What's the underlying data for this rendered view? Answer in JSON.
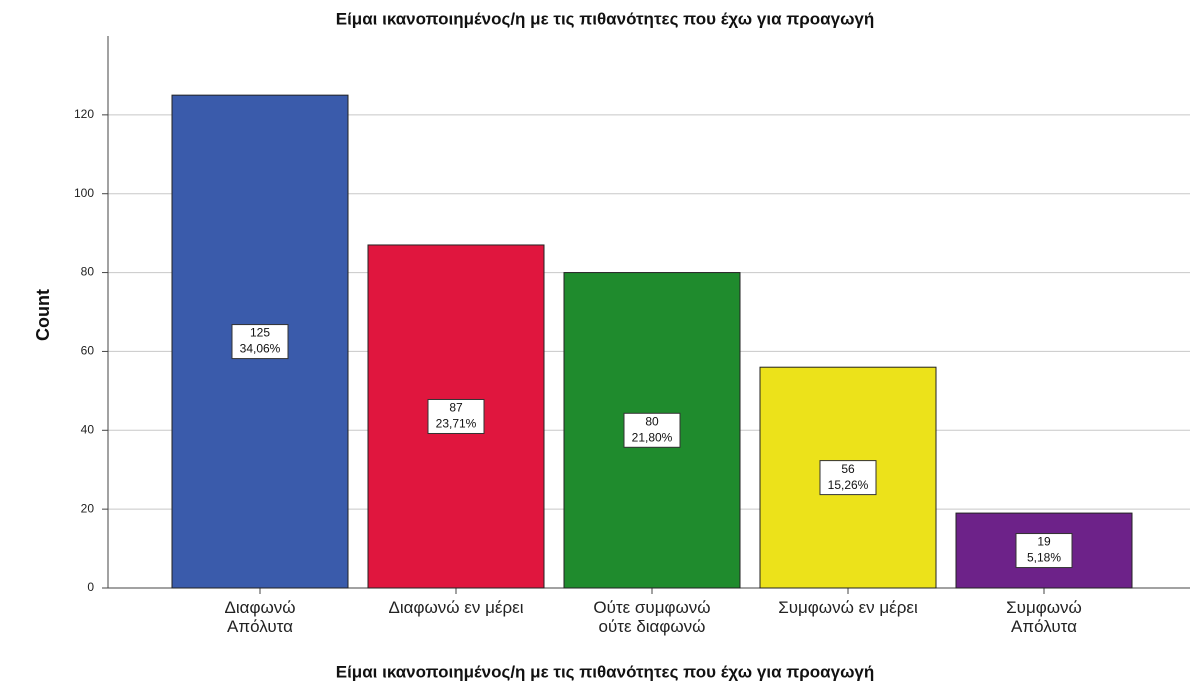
{
  "chart_data": {
    "type": "bar",
    "title": "Είμαι ικανοποιημένος/η με τις πιθανότητες που έχω για προαγωγή",
    "xlabel": "Είμαι ικανοποιημένος/η με τις πιθανότητες που έχω για προαγωγή",
    "ylabel": "Count",
    "categories": [
      "Διαφωνώ\nΑπόλυτα",
      "Διαφωνώ εν μέρει",
      "Ούτε συμφωνώ\nούτε διαφωνώ",
      "Συμφωνώ εν μέρει",
      "Συμφωνώ\nΑπόλυτα"
    ],
    "values": [
      125,
      87,
      80,
      56,
      19
    ],
    "percentages": [
      34.06,
      23.71,
      21.8,
      15.26,
      5.18
    ],
    "percentage_labels": [
      "34,06%",
      "23,71%",
      "21,80%",
      "15,26%",
      "5,18%"
    ],
    "colors": [
      "#3a5bab",
      "#e0163e",
      "#1f8b2d",
      "#ece21a",
      "#6d2289"
    ],
    "ylim": [
      0,
      140
    ],
    "yticks": [
      0,
      20,
      40,
      60,
      80,
      100,
      120
    ],
    "grid": true
  }
}
